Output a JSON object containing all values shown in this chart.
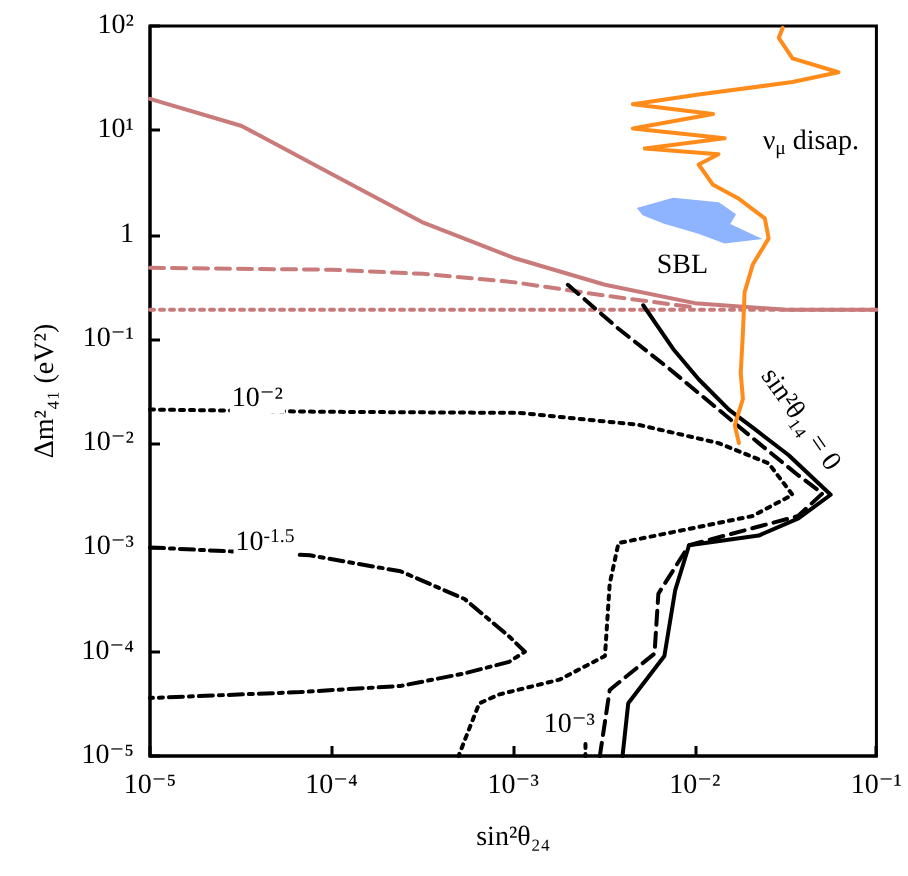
{
  "chart_data": {
    "type": "line",
    "xlabel": "sin²θ₂₄",
    "ylabel": "Δm²₄₁ (eV²)",
    "log": "xy",
    "grid": false,
    "marker": "none",
    "xlim": [
      1e-05,
      0.1
    ],
    "ylim": [
      1e-05,
      100
    ],
    "xticks": [
      {
        "value": 1e-05,
        "label": "10⁻⁵"
      },
      {
        "value": 0.0001,
        "label": "10⁻⁴"
      },
      {
        "value": 0.001,
        "label": "10⁻³"
      },
      {
        "value": 0.01,
        "label": "10⁻²"
      },
      {
        "value": 0.1,
        "label": "10⁻¹"
      }
    ],
    "yticks": [
      {
        "value": 1e-05,
        "label": "10⁻⁵"
      },
      {
        "value": 0.0001,
        "label": "10⁻⁴"
      },
      {
        "value": 0.001,
        "label": "10⁻³"
      },
      {
        "value": 0.01,
        "label": "10⁻²"
      },
      {
        "value": 0.1,
        "label": "10⁻¹"
      },
      1,
      {
        "value": 10,
        "label": "10¹"
      },
      {
        "value": 100,
        "label": "10²"
      }
    ],
    "series": [
      {
        "color": "#c97b7b",
        "line_style": "solid",
        "x": [
          1e-05,
          3.2e-05,
          0.0001,
          0.00032,
          0.001,
          0.0032,
          0.01,
          0.032,
          0.1
        ],
        "values": [
          20,
          11,
          3.8,
          1.3,
          0.6,
          0.33,
          0.22,
          0.19,
          0.19
        ]
      },
      {
        "color": "#c97b7b",
        "line_style": "dashed",
        "x": [
          1e-05,
          0.0001,
          0.00032,
          0.001,
          0.0032,
          0.01
        ],
        "values": [
          0.48,
          0.46,
          0.42,
          0.35,
          0.26,
          0.2
        ]
      },
      {
        "color": "#c97b7b",
        "line_style": "dotted",
        "x": [
          1e-05,
          0.001,
          0.1
        ],
        "values": [
          0.19,
          0.19,
          0.19
        ]
      },
      {
        "color": "#000000",
        "line_style": "solid",
        "x": [
          0.0052,
          0.0076,
          0.0105,
          0.0154,
          0.0214,
          0.0328,
          0.056,
          0.0372,
          0.0225,
          0.0093,
          0.0078,
          0.0068,
          0.0043,
          0.004
        ],
        "values": [
          0.21,
          0.08,
          0.041,
          0.021,
          0.0136,
          0.0077,
          0.0032,
          0.0019,
          0.0013,
          0.00105,
          0.00039,
          9.1e-05,
          3.2e-05,
          1e-05
        ]
      },
      {
        "color": "#000000",
        "line_style": "dashed",
        "x": [
          0.002,
          0.0038,
          0.0072,
          0.0135,
          0.0225,
          0.0372,
          0.0505,
          0.037,
          0.0093,
          0.0063,
          0.006,
          0.0034,
          0.003
        ],
        "values": [
          0.33,
          0.125,
          0.052,
          0.021,
          0.01,
          0.0049,
          0.0033,
          0.002,
          0.00105,
          0.00036,
          9.6e-05,
          4.3e-05,
          1e-05
        ]
      },
      {
        "color": "#000000",
        "line_style": "dotted",
        "x": [
          1e-05,
          8.6e-05,
          0.00108,
          0.0049,
          0.0135,
          0.0255,
          0.0345,
          0.0208,
          0.0038,
          0.0034,
          0.0032,
          0.0018,
          0.00084,
          0.00065,
          0.0005
        ],
        "values": [
          0.021,
          0.02,
          0.0195,
          0.015,
          0.01,
          0.0064,
          0.0032,
          0.002,
          0.0011,
          0.00045,
          9.1e-05,
          5.4e-05,
          3.9e-05,
          3.2e-05,
          1e-05
        ]
      },
      {
        "color": "#000000",
        "line_style": "dashdot",
        "x": [
          1e-05,
          7.6e-05,
          0.00024,
          0.00054,
          0.00095,
          0.00116,
          0.00095,
          0.00054,
          0.00024,
          6.7e-05,
          1e-05
        ],
        "values": [
          0.001,
          0.00084,
          0.00059,
          0.00032,
          0.00014,
          0.0001,
          8e-05,
          6.2e-05,
          4.7e-05,
          4.1e-05,
          3.6e-05
        ]
      },
      {
        "color": "#000000",
        "line_style": "dotted",
        "x": [
          0.0025,
          0.0025
        ],
        "values": [
          1.3e-05,
          1e-05
        ]
      },
      {
        "type": "area",
        "name": "SBL",
        "color": "#8fb4ff",
        "x": [
          0.0049,
          0.0076,
          0.0135,
          0.0166,
          0.0154,
          0.0225,
          0.0146,
          0.0105,
          0.0068,
          0.0052
        ],
        "values": [
          1.78,
          2.2,
          2.0,
          1.56,
          1.25,
          0.92,
          0.84,
          1.04,
          1.3,
          1.56
        ]
      },
      {
        "name": "ν$_{μ}$ disap.",
        "color": "#ff8c1a",
        "line_style": "solid",
        "x": [
          0.0305,
          0.029,
          0.0345,
          0.0618,
          0.0345,
          0.0105,
          0.00456,
          0.0126,
          0.00456,
          0.0146,
          0.0053,
          0.0135,
          0.0105,
          0.0126,
          0.0175,
          0.0243,
          0.0255,
          0.0209,
          0.0188,
          0.0184,
          0.0179,
          0.0184,
          0.0166,
          0.0175
        ],
        "values": [
          96,
          77,
          49,
          36,
          29,
          22,
          17.8,
          14.3,
          10.4,
          8.4,
          6.7,
          5.9,
          4.7,
          3.0,
          2.2,
          1.43,
          0.92,
          0.52,
          0.28,
          0.114,
          0.047,
          0.0265,
          0.0149,
          0.01
        ]
      }
    ],
    "annotations": [
      {
        "text": "10⁻²",
        "x": 3.9e-05,
        "y": 0.0265
      },
      {
        "text": "10$^{-1.5}$",
        "x": 4.3e-05,
        "y": 0.0011
      },
      {
        "text": "10⁻³",
        "x": 0.00204,
        "y": 2e-05
      },
      "sin²θ₁₄ = 0"
    ]
  }
}
